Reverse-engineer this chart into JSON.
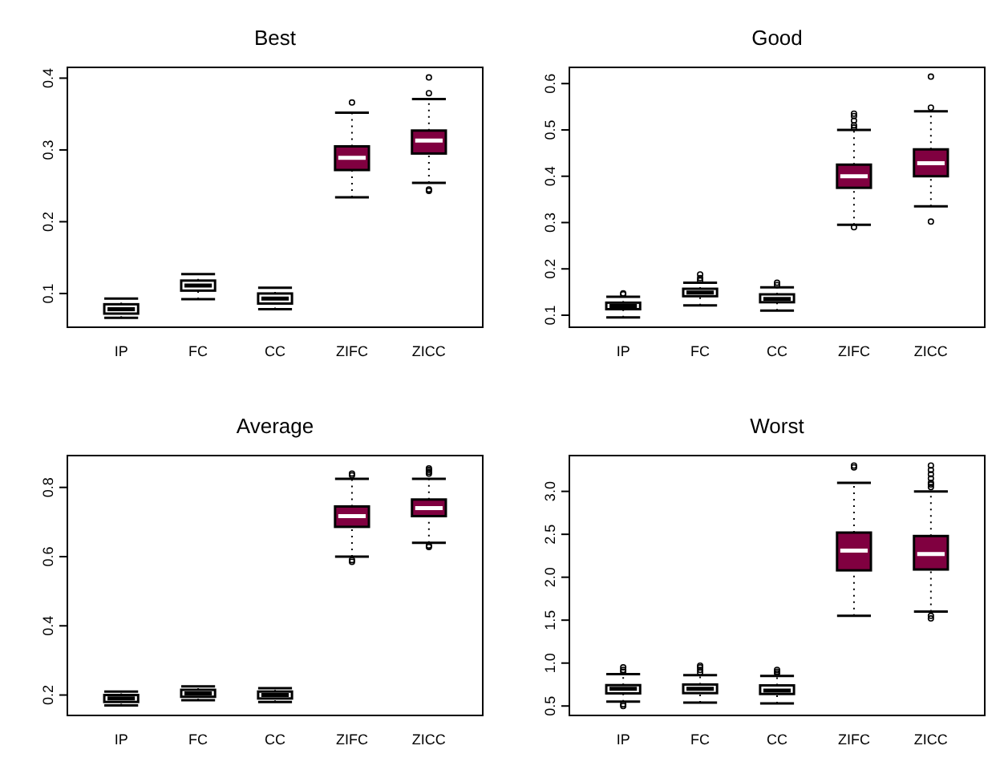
{
  "chart_data": [
    {
      "type": "box",
      "title": "Best",
      "categories": [
        "IP",
        "FC",
        "CC",
        "ZIFC",
        "ZICC"
      ],
      "colors": [
        "#ffffff",
        "#ffffff",
        "#ffffff",
        "#800040",
        "#800040"
      ],
      "ylim": [
        0.053,
        0.415
      ],
      "yticks": [
        0.1,
        0.2,
        0.3,
        0.4
      ],
      "grid": false,
      "boxes": [
        {
          "low": 0.066,
          "q1": 0.072,
          "median": 0.078,
          "q3": 0.085,
          "high": 0.093
        },
        {
          "low": 0.092,
          "q1": 0.104,
          "median": 0.111,
          "q3": 0.118,
          "high": 0.127
        },
        {
          "low": 0.078,
          "q1": 0.086,
          "median": 0.093,
          "q3": 0.1,
          "high": 0.108
        },
        {
          "low": 0.234,
          "q1": 0.272,
          "median": 0.289,
          "q3": 0.305,
          "high": 0.352,
          "outliers": [
            0.366
          ]
        },
        {
          "low": 0.254,
          "q1": 0.295,
          "median": 0.313,
          "q3": 0.327,
          "high": 0.371,
          "outliers": [
            0.243,
            0.245,
            0.379,
            0.401
          ]
        }
      ]
    },
    {
      "type": "box",
      "title": "Good",
      "categories": [
        "IP",
        "FC",
        "CC",
        "ZIFC",
        "ZICC"
      ],
      "colors": [
        "#ffffff",
        "#ffffff",
        "#ffffff",
        "#800040",
        "#800040"
      ],
      "ylim": [
        0.074,
        0.635
      ],
      "yticks": [
        0.1,
        0.2,
        0.3,
        0.4,
        0.5,
        0.6
      ],
      "grid": false,
      "boxes": [
        {
          "low": 0.095,
          "q1": 0.113,
          "median": 0.12,
          "q3": 0.127,
          "high": 0.14,
          "outliers": [
            0.145,
            0.147
          ]
        },
        {
          "low": 0.121,
          "q1": 0.141,
          "median": 0.149,
          "q3": 0.157,
          "high": 0.17,
          "outliers": [
            0.175,
            0.18,
            0.188
          ]
        },
        {
          "low": 0.11,
          "q1": 0.128,
          "median": 0.135,
          "q3": 0.145,
          "high": 0.16,
          "outliers": [
            0.165,
            0.17
          ]
        },
        {
          "low": 0.295,
          "q1": 0.375,
          "median": 0.4,
          "q3": 0.425,
          "high": 0.5,
          "outliers": [
            0.29,
            0.505,
            0.51,
            0.52,
            0.53,
            0.535
          ]
        },
        {
          "low": 0.335,
          "q1": 0.4,
          "median": 0.428,
          "q3": 0.458,
          "high": 0.54,
          "outliers": [
            0.302,
            0.548,
            0.615
          ]
        }
      ]
    },
    {
      "type": "box",
      "title": "Average",
      "categories": [
        "IP",
        "FC",
        "CC",
        "ZIFC",
        "ZICC"
      ],
      "colors": [
        "#ffffff",
        "#ffffff",
        "#ffffff",
        "#800040",
        "#800040"
      ],
      "ylim": [
        0.141,
        0.892
      ],
      "yticks": [
        0.2,
        0.4,
        0.6,
        0.8
      ],
      "grid": false,
      "boxes": [
        {
          "low": 0.17,
          "q1": 0.18,
          "median": 0.19,
          "q3": 0.2,
          "high": 0.21
        },
        {
          "low": 0.185,
          "q1": 0.195,
          "median": 0.205,
          "q3": 0.215,
          "high": 0.225
        },
        {
          "low": 0.18,
          "q1": 0.19,
          "median": 0.2,
          "q3": 0.21,
          "high": 0.22
        },
        {
          "low": 0.6,
          "q1": 0.686,
          "median": 0.717,
          "q3": 0.745,
          "high": 0.825,
          "outliers": [
            0.585,
            0.59,
            0.835,
            0.84
          ]
        },
        {
          "low": 0.64,
          "q1": 0.717,
          "median": 0.74,
          "q3": 0.765,
          "high": 0.825,
          "outliers": [
            0.628,
            0.632,
            0.84,
            0.845,
            0.85,
            0.855
          ]
        }
      ]
    },
    {
      "type": "box",
      "title": "Worst",
      "categories": [
        "IP",
        "FC",
        "CC",
        "ZIFC",
        "ZICC"
      ],
      "colors": [
        "#ffffff",
        "#ffffff",
        "#ffffff",
        "#800040",
        "#800040"
      ],
      "ylim": [
        0.39,
        3.417
      ],
      "yticks": [
        0.5,
        {
          "value": 1,
          "label": "1.0"
        },
        1.5,
        {
          "value": 2,
          "label": "2.0"
        },
        2.5,
        {
          "value": 3,
          "label": "3.0"
        }
      ],
      "grid": false,
      "boxes": [
        {
          "low": 0.55,
          "q1": 0.647,
          "median": 0.7,
          "q3": 0.743,
          "high": 0.87,
          "outliers": [
            0.5,
            0.52,
            0.9,
            0.92,
            0.95
          ]
        },
        {
          "low": 0.54,
          "q1": 0.65,
          "median": 0.7,
          "q3": 0.75,
          "high": 0.86,
          "outliers": [
            0.89,
            0.92,
            0.95,
            0.97
          ]
        },
        {
          "low": 0.53,
          "q1": 0.64,
          "median": 0.68,
          "q3": 0.74,
          "high": 0.85,
          "outliers": [
            0.88,
            0.9,
            0.92
          ]
        },
        {
          "low": 1.55,
          "q1": 2.08,
          "median": 2.31,
          "q3": 2.52,
          "high": 3.1,
          "outliers": [
            3.28,
            3.3
          ]
        },
        {
          "low": 1.6,
          "q1": 2.09,
          "median": 2.27,
          "q3": 2.48,
          "high": 3.0,
          "outliers": [
            1.52,
            1.55,
            3.05,
            3.08,
            3.1,
            3.15,
            3.2,
            3.25,
            3.3
          ]
        }
      ]
    }
  ]
}
